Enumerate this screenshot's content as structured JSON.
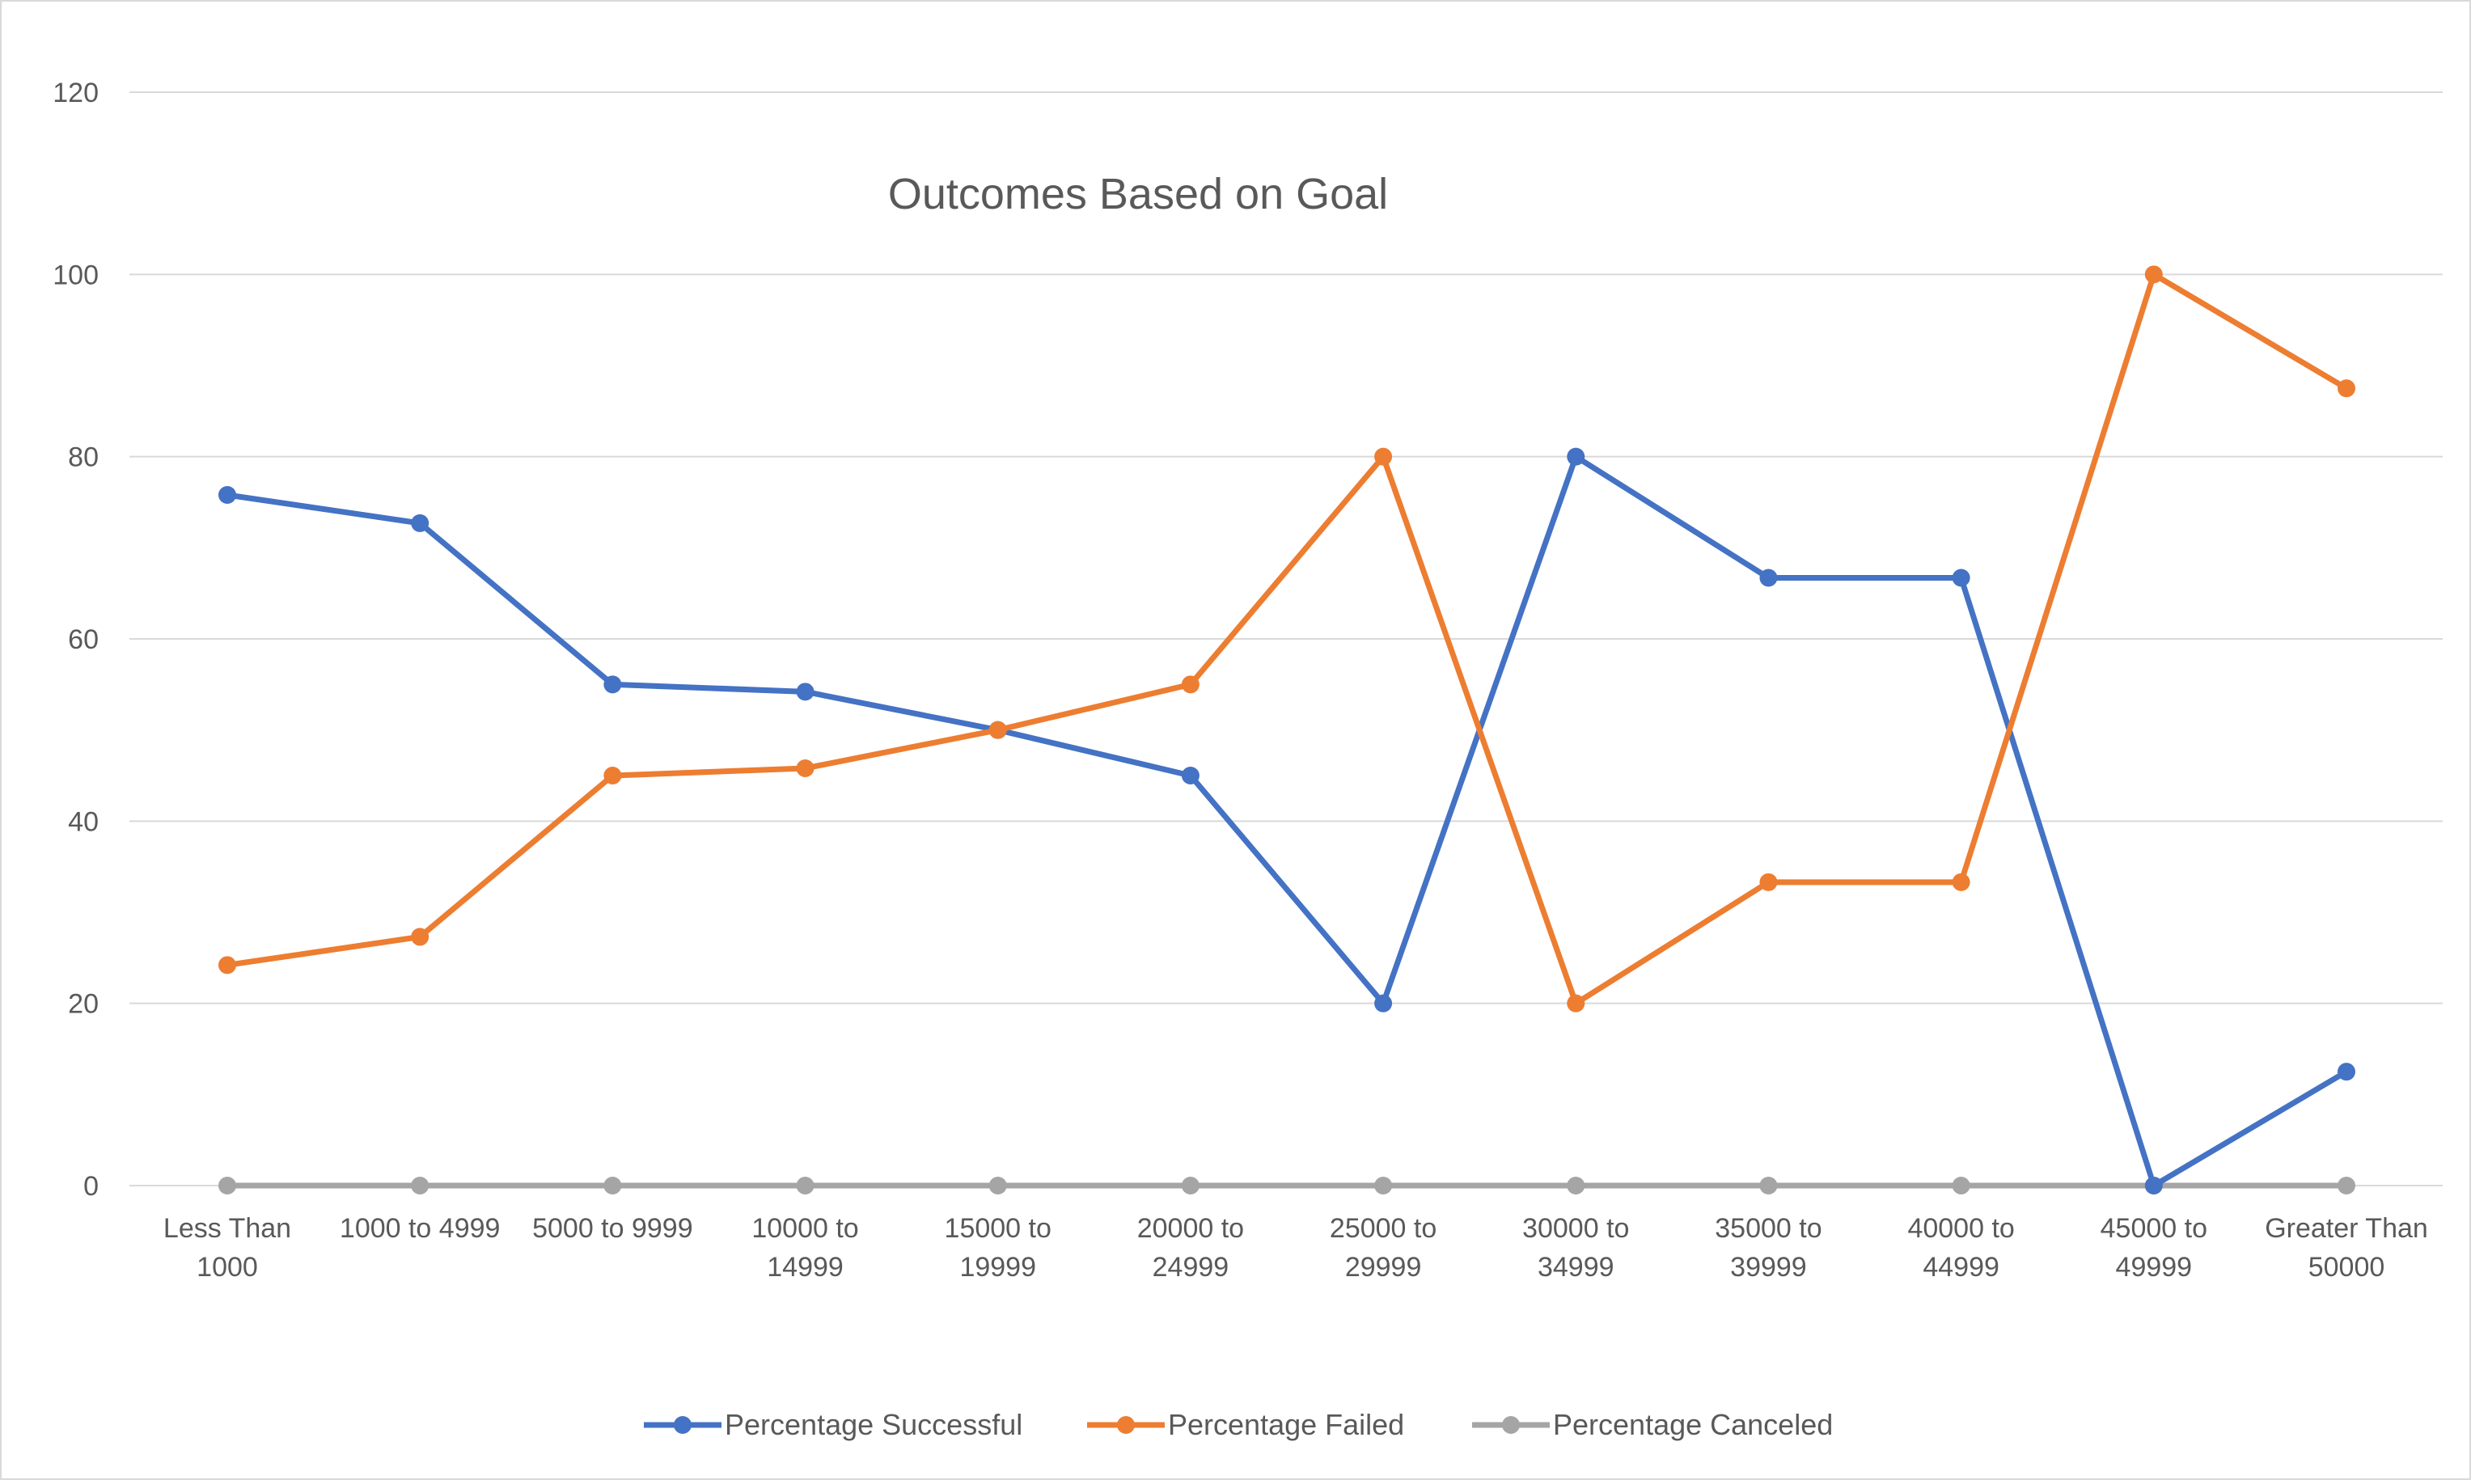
{
  "chart_data": {
    "type": "line",
    "title": "Outcomes Based on Goal",
    "xlabel": "",
    "ylabel": "",
    "ylim": [
      0,
      120
    ],
    "yticks": [
      0,
      20,
      40,
      60,
      80,
      100,
      120
    ],
    "grid": true,
    "legend_position": "bottom",
    "categories": [
      [
        "Less Than",
        "1000"
      ],
      [
        "1000 to 4999"
      ],
      [
        "5000 to 9999"
      ],
      [
        "10000 to",
        "14999"
      ],
      [
        "15000 to",
        "19999"
      ],
      [
        "20000 to",
        "24999"
      ],
      [
        "25000 to",
        "29999"
      ],
      [
        "30000 to",
        "34999"
      ],
      [
        "35000 to",
        "39999"
      ],
      [
        "40000 to",
        "44999"
      ],
      [
        "45000 to",
        "49999"
      ],
      [
        "Greater Than",
        "50000"
      ]
    ],
    "series": [
      {
        "name": "Percentage Successful",
        "color": "#4472c4",
        "values": [
          75.8,
          72.7,
          55.0,
          54.2,
          50.0,
          45.0,
          20.0,
          80.0,
          66.7,
          66.7,
          0.0,
          12.5
        ]
      },
      {
        "name": "Percentage Failed",
        "color": "#ed7d31",
        "values": [
          24.2,
          27.3,
          45.0,
          45.8,
          50.0,
          55.0,
          80.0,
          20.0,
          33.3,
          33.3,
          100.0,
          87.5
        ]
      },
      {
        "name": "Percentage Canceled",
        "color": "#a5a5a5",
        "values": [
          0,
          0,
          0,
          0,
          0,
          0,
          0,
          0,
          0,
          0,
          0,
          0
        ]
      }
    ]
  }
}
